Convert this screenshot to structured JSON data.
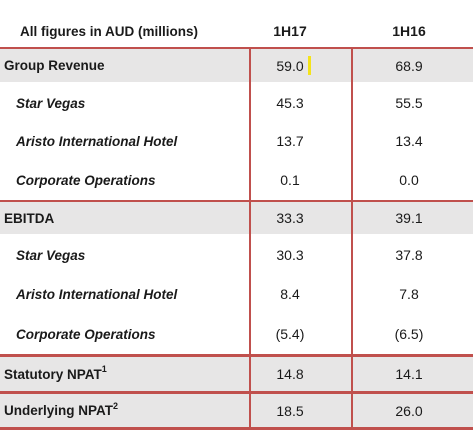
{
  "header": {
    "label": "All figures in AUD (millions)",
    "col1": "1H17",
    "col2": "1H16"
  },
  "rows": [
    {
      "label": "Group Revenue",
      "v1": "59.0",
      "v2": "68.9"
    },
    {
      "label": "Star Vegas",
      "v1": "45.3",
      "v2": "55.5"
    },
    {
      "label": "Aristo International Hotel",
      "v1": "13.7",
      "v2": "13.4"
    },
    {
      "label": "Corporate Operations",
      "v1": "0.1",
      "v2": "0.0"
    },
    {
      "label": "EBITDA",
      "v1": "33.3",
      "v2": "39.1"
    },
    {
      "label": "Star Vegas",
      "v1": "30.3",
      "v2": "37.8"
    },
    {
      "label": "Aristo International Hotel",
      "v1": "8.4",
      "v2": "7.8"
    },
    {
      "label": "Corporate Operations",
      "v1": "(5.4)",
      "v2": "(6.5)"
    },
    {
      "label": "Statutory NPAT",
      "sup": "1",
      "v1": "14.8",
      "v2": "14.1"
    },
    {
      "label": "Underlying NPAT",
      "sup": "2",
      "v1": "18.5",
      "v2": "26.0"
    }
  ],
  "colors": {
    "rule": "#c0504d",
    "major_row_bg": "#e7e6e6",
    "highlight": "#f4e31a"
  }
}
